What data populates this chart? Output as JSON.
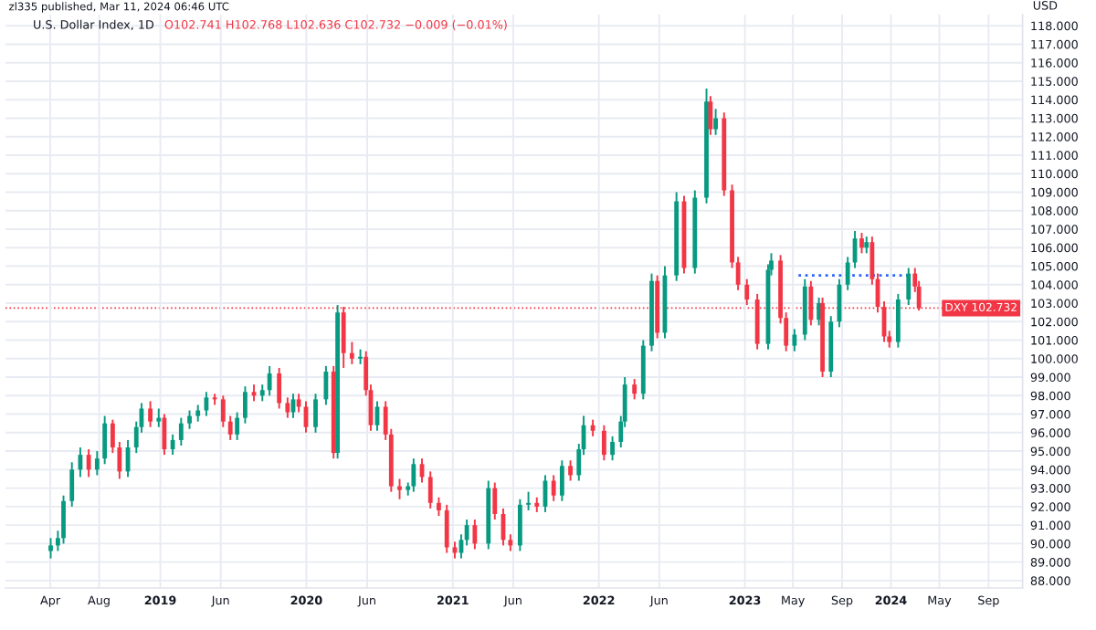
{
  "chart_data": {
    "type": "candlestick",
    "title": "U.S. Dollar Index, 1D",
    "subtitle": "O102.741 H102.768 L102.636 C102.732 −0.009 (−0.01%)",
    "ylabel": "USD",
    "annotations": [
      "zl335 published, Mar 11, 2024 06:46 UTC"
    ],
    "x": [
      "2018-04-02",
      "2018-04-20",
      "2018-05-04",
      "2018-05-25",
      "2018-06-15",
      "2018-07-06",
      "2018-07-27",
      "2018-08-15",
      "2018-09-04",
      "2018-09-21",
      "2018-10-12",
      "2018-11-02",
      "2018-11-15",
      "2018-12-07",
      "2018-12-28",
      "2019-01-11",
      "2019-02-01",
      "2019-02-22",
      "2019-03-15",
      "2019-04-05",
      "2019-04-26",
      "2019-05-17",
      "2019-06-07",
      "2019-06-25",
      "2019-07-12",
      "2019-08-01",
      "2019-08-23",
      "2019-09-13",
      "2019-10-01",
      "2019-10-25",
      "2019-11-15",
      "2019-11-29",
      "2019-12-13",
      "2019-12-31",
      "2020-01-24",
      "2020-02-19",
      "2020-03-09",
      "2020-03-19",
      "2020-04-03",
      "2020-04-24",
      "2020-05-15",
      "2020-05-29",
      "2020-06-10",
      "2020-06-26",
      "2020-07-17",
      "2020-07-31",
      "2020-08-21",
      "2020-09-11",
      "2020-09-25",
      "2020-10-16",
      "2020-11-06",
      "2020-11-27",
      "2020-12-17",
      "2021-01-06",
      "2021-01-22",
      "2021-02-05",
      "2021-02-25",
      "2021-03-31",
      "2021-04-16",
      "2021-05-07",
      "2021-05-25",
      "2021-06-18",
      "2021-07-09",
      "2021-07-30",
      "2021-08-20",
      "2021-09-10",
      "2021-10-01",
      "2021-10-22",
      "2021-11-12",
      "2021-11-24",
      "2021-12-17",
      "2022-01-14",
      "2022-02-04",
      "2022-02-25",
      "2022-03-07",
      "2022-03-31",
      "2022-04-22",
      "2022-05-13",
      "2022-05-27",
      "2022-06-15",
      "2022-07-14",
      "2022-08-02",
      "2022-08-29",
      "2022-09-27",
      "2022-10-07",
      "2022-10-20",
      "2022-11-10",
      "2022-11-30",
      "2022-12-15",
      "2023-01-06",
      "2023-02-01",
      "2023-02-28",
      "2023-03-08",
      "2023-03-31",
      "2023-04-14",
      "2023-05-05",
      "2023-05-31",
      "2023-06-15",
      "2023-07-05",
      "2023-07-14",
      "2023-08-04",
      "2023-08-25",
      "2023-09-15",
      "2023-10-03",
      "2023-10-20",
      "2023-11-01",
      "2023-11-15",
      "2023-11-29",
      "2023-12-15",
      "2023-12-28",
      "2024-01-19",
      "2024-02-14",
      "2024-03-01",
      "2024-03-11"
    ],
    "series": [
      {
        "type": "candlestick",
        "ohlc": [
          [
            89.6,
            90.3,
            89.2,
            89.9
          ],
          [
            89.9,
            90.7,
            89.6,
            90.3
          ],
          [
            90.3,
            92.6,
            90.0,
            92.3
          ],
          [
            92.3,
            94.4,
            92.0,
            94.0
          ],
          [
            94.0,
            95.2,
            93.6,
            94.8
          ],
          [
            94.8,
            95.1,
            93.6,
            94.0
          ],
          [
            94.0,
            95.0,
            93.7,
            94.6
          ],
          [
            94.6,
            96.9,
            94.3,
            96.5
          ],
          [
            96.5,
            96.7,
            94.9,
            95.2
          ],
          [
            95.2,
            95.5,
            93.5,
            93.9
          ],
          [
            93.9,
            95.6,
            93.6,
            95.2
          ],
          [
            95.2,
            96.6,
            94.9,
            96.3
          ],
          [
            96.3,
            97.6,
            96.0,
            97.3
          ],
          [
            97.3,
            97.7,
            96.3,
            96.6
          ],
          [
            96.6,
            97.3,
            96.3,
            96.8
          ],
          [
            96.8,
            97.0,
            94.8,
            95.1
          ],
          [
            95.1,
            95.9,
            94.8,
            95.6
          ],
          [
            95.6,
            96.8,
            95.3,
            96.5
          ],
          [
            96.5,
            97.2,
            96.2,
            96.9
          ],
          [
            96.9,
            97.5,
            96.6,
            97.2
          ],
          [
            97.2,
            98.2,
            96.9,
            97.9
          ],
          [
            97.9,
            98.1,
            97.5,
            97.8
          ],
          [
            97.8,
            98.0,
            96.3,
            96.6
          ],
          [
            96.6,
            96.9,
            95.6,
            95.9
          ],
          [
            95.9,
            97.1,
            95.6,
            96.8
          ],
          [
            96.8,
            98.5,
            96.5,
            98.2
          ],
          [
            98.2,
            98.6,
            97.7,
            98.0
          ],
          [
            98.0,
            98.6,
            97.7,
            98.3
          ],
          [
            98.3,
            99.6,
            98.0,
            99.2
          ],
          [
            99.2,
            99.5,
            97.3,
            97.6
          ],
          [
            97.6,
            97.9,
            96.8,
            97.1
          ],
          [
            97.1,
            98.1,
            96.8,
            97.8
          ],
          [
            97.8,
            98.1,
            97.1,
            97.4
          ],
          [
            97.4,
            97.7,
            96.0,
            96.3
          ],
          [
            96.3,
            98.1,
            96.0,
            97.8
          ],
          [
            97.8,
            99.6,
            97.5,
            99.3
          ],
          [
            99.3,
            99.6,
            94.6,
            94.9
          ],
          [
            94.9,
            102.9,
            94.6,
            102.5
          ],
          [
            102.5,
            102.8,
            99.5,
            100.3
          ],
          [
            100.3,
            100.9,
            99.7,
            100.0
          ],
          [
            100.0,
            100.5,
            99.7,
            100.1
          ],
          [
            100.1,
            100.4,
            98.0,
            98.3
          ],
          [
            98.3,
            98.6,
            96.1,
            96.4
          ],
          [
            96.4,
            97.7,
            96.1,
            97.4
          ],
          [
            97.4,
            97.7,
            95.6,
            95.9
          ],
          [
            95.9,
            96.2,
            92.8,
            93.1
          ],
          [
            93.1,
            93.5,
            92.4,
            92.9
          ],
          [
            92.9,
            93.3,
            92.6,
            93.1
          ],
          [
            93.1,
            94.6,
            92.8,
            94.3
          ],
          [
            94.3,
            94.6,
            93.3,
            93.6
          ],
          [
            93.6,
            93.9,
            91.9,
            92.2
          ],
          [
            92.2,
            92.5,
            91.5,
            91.8
          ],
          [
            91.8,
            92.1,
            89.5,
            89.8
          ],
          [
            89.8,
            90.1,
            89.2,
            89.5
          ],
          [
            89.5,
            90.5,
            89.2,
            90.2
          ],
          [
            90.2,
            91.3,
            89.9,
            91.0
          ],
          [
            91.0,
            91.3,
            89.7,
            90.0
          ],
          [
            90.0,
            93.4,
            89.7,
            93.0
          ],
          [
            93.0,
            93.3,
            91.3,
            91.6
          ],
          [
            91.6,
            91.9,
            89.9,
            90.2
          ],
          [
            90.2,
            90.5,
            89.6,
            89.9
          ],
          [
            89.9,
            92.4,
            89.6,
            92.1
          ],
          [
            92.1,
            92.8,
            91.8,
            92.2
          ],
          [
            92.2,
            92.5,
            91.7,
            92.0
          ],
          [
            92.0,
            93.7,
            91.7,
            93.4
          ],
          [
            93.4,
            93.7,
            92.3,
            92.6
          ],
          [
            92.6,
            94.5,
            92.3,
            94.2
          ],
          [
            94.2,
            94.5,
            93.4,
            93.7
          ],
          [
            93.7,
            95.4,
            93.4,
            95.1
          ],
          [
            95.1,
            96.9,
            94.8,
            96.4
          ],
          [
            96.4,
            96.7,
            95.8,
            96.1
          ],
          [
            96.1,
            96.4,
            94.5,
            94.8
          ],
          [
            94.8,
            95.8,
            94.5,
            95.5
          ],
          [
            95.5,
            96.9,
            95.2,
            96.6
          ],
          [
            96.6,
            99.0,
            96.3,
            98.6
          ],
          [
            98.6,
            98.9,
            97.8,
            98.1
          ],
          [
            98.1,
            101.0,
            97.8,
            100.7
          ],
          [
            100.7,
            104.6,
            100.4,
            104.2
          ],
          [
            104.2,
            104.5,
            101.1,
            101.4
          ],
          [
            101.4,
            105.0,
            101.1,
            104.5
          ],
          [
            104.5,
            109.0,
            104.2,
            108.5
          ],
          [
            108.5,
            108.8,
            104.6,
            104.9
          ],
          [
            104.9,
            109.1,
            104.6,
            108.7
          ],
          [
            108.7,
            114.6,
            108.4,
            113.9
          ],
          [
            113.9,
            114.2,
            112.1,
            112.4
          ],
          [
            112.4,
            113.5,
            112.1,
            113.0
          ],
          [
            113.0,
            113.3,
            108.8,
            109.1
          ],
          [
            109.1,
            109.4,
            104.9,
            105.2
          ],
          [
            105.2,
            105.5,
            103.7,
            104.0
          ],
          [
            104.0,
            104.3,
            102.9,
            103.2
          ],
          [
            103.2,
            103.5,
            100.5,
            100.8
          ],
          [
            100.8,
            105.1,
            100.5,
            104.8
          ],
          [
            104.8,
            105.7,
            104.5,
            105.3
          ],
          [
            105.3,
            105.6,
            101.9,
            102.2
          ],
          [
            102.2,
            102.5,
            100.4,
            100.7
          ],
          [
            100.7,
            101.6,
            100.4,
            101.3
          ],
          [
            101.3,
            104.3,
            101.0,
            103.9
          ],
          [
            103.9,
            104.2,
            101.8,
            102.1
          ],
          [
            102.1,
            103.3,
            101.8,
            103.0
          ],
          [
            103.0,
            103.3,
            99.0,
            99.3
          ],
          [
            99.3,
            102.3,
            99.0,
            102.0
          ],
          [
            102.0,
            104.3,
            101.7,
            104.0
          ],
          [
            104.0,
            105.5,
            103.7,
            105.2
          ],
          [
            105.2,
            106.9,
            104.9,
            106.5
          ],
          [
            106.5,
            106.8,
            105.7,
            106.0
          ],
          [
            106.0,
            106.6,
            105.7,
            106.3
          ],
          [
            106.3,
            106.6,
            104.0,
            104.3
          ],
          [
            104.3,
            104.6,
            102.5,
            102.8
          ],
          [
            102.8,
            103.1,
            100.9,
            101.2
          ],
          [
            101.2,
            101.5,
            100.6,
            100.9
          ],
          [
            100.9,
            103.5,
            100.6,
            103.2
          ],
          [
            103.2,
            104.9,
            102.9,
            104.6
          ],
          [
            104.6,
            104.9,
            103.6,
            103.9
          ],
          [
            103.9,
            104.2,
            102.6,
            102.732
          ]
        ]
      },
      {
        "type": "line",
        "color": "#2962ff",
        "line_style": "dotted",
        "x": [
          "2023-05-15",
          "2024-02-15"
        ],
        "values": [
          104.5,
          104.5
        ]
      }
    ],
    "ref_lines": [
      {
        "axis": "y",
        "value": 102.732,
        "label": "DXY 102.732",
        "color": "#f23645",
        "line_style": "dotted"
      }
    ],
    "xlim": [
      "2017-12-10",
      "2024-11-25"
    ],
    "xticks": [
      {
        "value": "2018-04-01",
        "label": "Apr"
      },
      {
        "value": "2018-08-01",
        "label": "Aug"
      },
      {
        "value": "2019-01-01",
        "label": "2019"
      },
      {
        "value": "2019-06-01",
        "label": "Jun"
      },
      {
        "value": "2020-01-01",
        "label": "2020"
      },
      {
        "value": "2020-06-01",
        "label": "Jun"
      },
      {
        "value": "2021-01-01",
        "label": "2021"
      },
      {
        "value": "2021-06-01",
        "label": "Jun"
      },
      {
        "value": "2022-01-01",
        "label": "2022"
      },
      {
        "value": "2022-06-01",
        "label": "Jun"
      },
      {
        "value": "2023-01-01",
        "label": "2023"
      },
      {
        "value": "2023-05-01",
        "label": "May"
      },
      {
        "value": "2023-09-01",
        "label": "Sep"
      },
      {
        "value": "2024-01-01",
        "label": "2024"
      },
      {
        "value": "2024-05-01",
        "label": "May"
      },
      {
        "value": "2024-09-01",
        "label": "Sep"
      }
    ],
    "ylim": [
      87.6,
      118.6
    ],
    "yticks": [
      {
        "value": 88,
        "label": "88.000"
      },
      {
        "value": 89,
        "label": "89.000"
      },
      {
        "value": 90,
        "label": "90.000"
      },
      {
        "value": 91,
        "label": "91.000"
      },
      {
        "value": 92,
        "label": "92.000"
      },
      {
        "value": 93,
        "label": "93.000"
      },
      {
        "value": 94,
        "label": "94.000"
      },
      {
        "value": 95,
        "label": "95.000"
      },
      {
        "value": 96,
        "label": "96.000"
      },
      {
        "value": 97,
        "label": "97.000"
      },
      {
        "value": 98,
        "label": "98.000"
      },
      {
        "value": 99,
        "label": "99.000"
      },
      {
        "value": 100,
        "label": "100.000"
      },
      {
        "value": 101,
        "label": "101.000"
      },
      {
        "value": 102,
        "label": "102.000"
      },
      {
        "value": 103,
        "label": "103.000"
      },
      {
        "value": 104,
        "label": "104.000"
      },
      {
        "value": 105,
        "label": "105.000"
      },
      {
        "value": 106,
        "label": "106.000"
      },
      {
        "value": 107,
        "label": "107.000"
      },
      {
        "value": 108,
        "label": "108.000"
      },
      {
        "value": 109,
        "label": "109.000"
      },
      {
        "value": 110,
        "label": "110.000"
      },
      {
        "value": 111,
        "label": "111.000"
      },
      {
        "value": 112,
        "label": "112.000"
      },
      {
        "value": 113,
        "label": "113.000"
      },
      {
        "value": 114,
        "label": "114.000"
      },
      {
        "value": 115,
        "label": "115.000"
      },
      {
        "value": 116,
        "label": "116.000"
      },
      {
        "value": 117,
        "label": "117.000"
      },
      {
        "value": 118,
        "label": "118.000"
      }
    ],
    "grid": true
  }
}
